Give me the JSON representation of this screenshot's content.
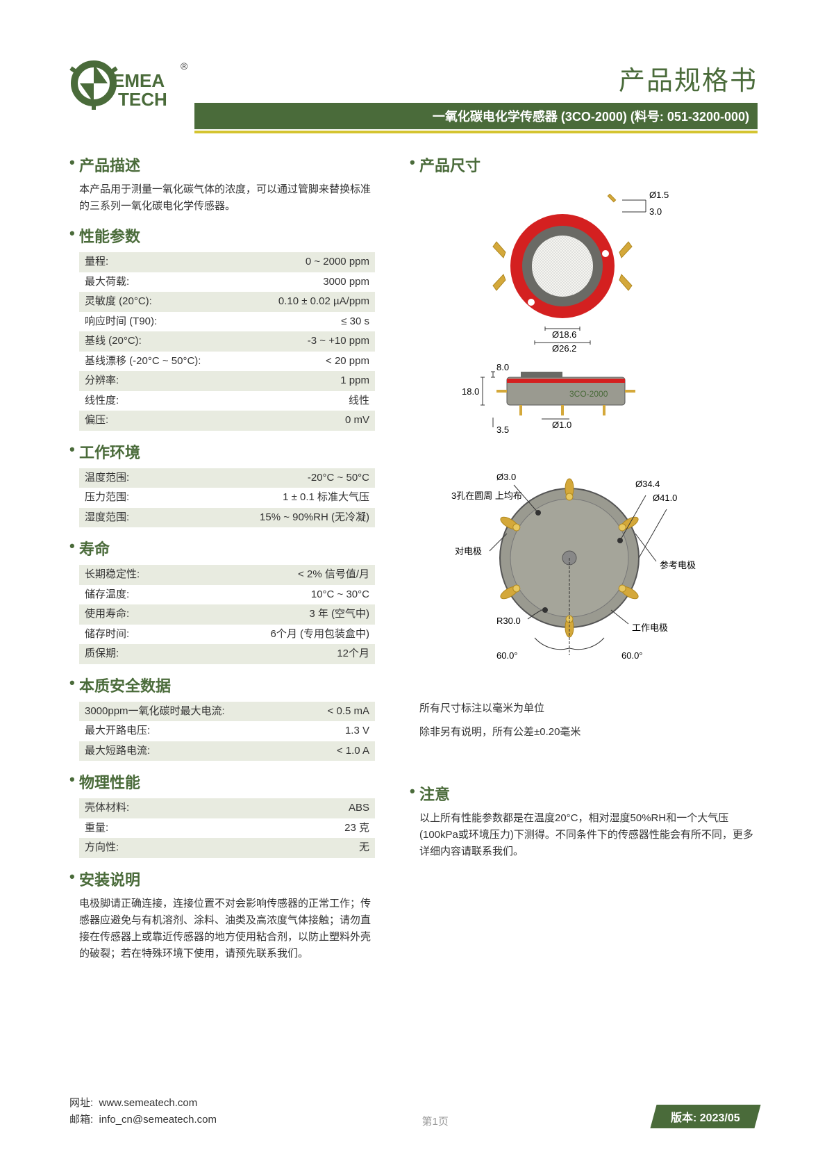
{
  "header": {
    "logo_text1": "EMEA",
    "logo_text2": "TECH",
    "logo_reg": "®",
    "doc_title": "产品规格书",
    "subtitle": "一氧化碳电化学传感器 (3CO-2000) (料号: 051-3200-000)"
  },
  "colors": {
    "brand_green": "#4a6b3a",
    "yellow": "#d4c430",
    "stripe": "#e8ebe0",
    "red": "#d42020",
    "gold": "#d4a83a",
    "gray_body": "#9a9a90",
    "dark_gray": "#6a6a65",
    "light_fill": "#f5f5f0"
  },
  "sections": {
    "desc": {
      "title": "产品描述",
      "text": "本产品用于测量一氧化碳气体的浓度，可以通过管脚来替换标准的三系列一氧化碳电化学传感器。"
    },
    "perf": {
      "title": "性能参数",
      "rows": [
        [
          "量程:",
          "0 ~ 2000 ppm"
        ],
        [
          "最大荷载:",
          "3000 ppm"
        ],
        [
          "灵敏度 (20°C):",
          "0.10 ± 0.02 µA/ppm"
        ],
        [
          "响应时间 (T90):",
          "≤ 30 s"
        ],
        [
          "基线 (20°C):",
          "-3 ~ +10 ppm"
        ],
        [
          "基线漂移 (-20°C ~ 50°C):",
          "< 20 ppm"
        ],
        [
          "分辨率:",
          "1 ppm"
        ],
        [
          "线性度:",
          "线性"
        ],
        [
          "偏压:",
          "0 mV"
        ]
      ]
    },
    "env": {
      "title": "工作环境",
      "rows": [
        [
          "温度范围:",
          "-20°C ~ 50°C"
        ],
        [
          "压力范围:",
          "1 ± 0.1 标准大气压"
        ],
        [
          "湿度范围:",
          "15% ~ 90%RH (无冷凝)"
        ]
      ]
    },
    "life": {
      "title": "寿命",
      "rows": [
        [
          "长期稳定性:",
          "< 2% 信号值/月"
        ],
        [
          "储存温度:",
          "10°C ~ 30°C"
        ],
        [
          "使用寿命:",
          "3 年 (空气中)"
        ],
        [
          "储存时间:",
          "6个月 (专用包装盒中)"
        ],
        [
          "质保期:",
          "12个月"
        ]
      ]
    },
    "safety": {
      "title": "本质安全数据",
      "rows": [
        [
          "3000ppm一氧化碳时最大电流:",
          "< 0.5 mA"
        ],
        [
          "最大开路电压:",
          "1.3 V"
        ],
        [
          "最大短路电流:",
          "< 1.0 A"
        ]
      ]
    },
    "phys": {
      "title": "物理性能",
      "rows": [
        [
          "壳体材料:",
          "ABS"
        ],
        [
          "重量:",
          "23 克"
        ],
        [
          "方向性:",
          "无"
        ]
      ]
    },
    "install": {
      "title": "安装说明",
      "text": "电极脚请正确连接，连接位置不对会影响传感器的正常工作；传感器应避免与有机溶剂、涂料、油类及高浓度气体接触；请勿直接在传感器上或靠近传感器的地方使用粘合剂，以防止塑料外壳的破裂；若在特殊环境下使用，请预先联系我们。"
    },
    "dim": {
      "title": "产品尺寸",
      "labels": {
        "d15": "Ø1.5",
        "l30": "3.0",
        "d186": "Ø18.6",
        "d262": "Ø26.2",
        "l80": "8.0",
        "l180": "18.0",
        "d10": "Ø1.0",
        "l35": "3.5",
        "d30": "Ø3.0",
        "d344": "Ø34.4",
        "d410": "Ø41.0",
        "r300": "R30.0",
        "a60l": "60.0°",
        "a60r": "60.0°",
        "holes": "3孔在圆周\n上均布",
        "counter": "对电极",
        "ref": "参考电极",
        "work": "工作电极",
        "product": "3CO-2000"
      },
      "note1": "所有尺寸标注以毫米为单位",
      "note2": "除非另有说明，所有公差±0.20毫米"
    },
    "notice": {
      "title": "注意",
      "text": "以上所有性能参数都是在温度20°C，相对湿度50%RH和一个大气压(100kPa或环境压力)下测得。不同条件下的传感器性能会有所不同，更多详细内容请联系我们。"
    }
  },
  "footer": {
    "url_label": "网址:",
    "url": "www.semeatech.com",
    "email_label": "邮箱:",
    "email": "info_cn@semeatech.com",
    "page": "第1页",
    "version": "版本: 2023/05"
  }
}
